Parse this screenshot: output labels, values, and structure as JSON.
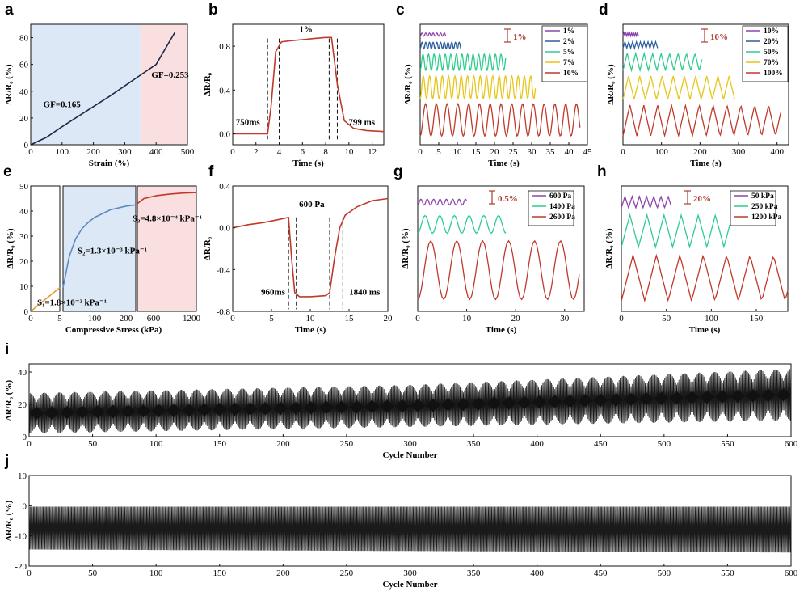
{
  "chart_data": [
    {
      "id": "a",
      "panel_label": "a",
      "type": "line",
      "xlabel": "Strain (%)",
      "ylabel": "ΔR/R₀ (%)",
      "xlim": [
        0,
        500
      ],
      "ylim": [
        0,
        90
      ],
      "xticks": [
        0,
        100,
        200,
        300,
        400,
        500
      ],
      "yticks": [
        0,
        20,
        40,
        60,
        80
      ],
      "regions": [
        {
          "from": 0,
          "to": 350,
          "color": "#dce8f6"
        },
        {
          "from": 350,
          "to": 500,
          "color": "#f9dfe0"
        }
      ],
      "series": [
        {
          "color": "#1e2a4a",
          "x": [
            0,
            50,
            100,
            150,
            200,
            250,
            300,
            350,
            400,
            430,
            460
          ],
          "y": [
            0,
            5.5,
            13.5,
            21,
            28.5,
            36,
            44,
            52,
            60,
            72,
            84
          ]
        }
      ],
      "annotations": [
        "GF=0.165",
        "GF=0.253"
      ]
    },
    {
      "id": "b",
      "panel_label": "b",
      "type": "line",
      "xlabel": "Time (s)",
      "ylabel": "ΔR/R₀",
      "xlim": [
        0,
        13
      ],
      "ylim": [
        -0.1,
        1.0
      ],
      "xticks": [
        0,
        2,
        4,
        6,
        8,
        10,
        12
      ],
      "yticks": [
        0.0,
        0.4,
        0.8
      ],
      "series": [
        {
          "color": "#c0392b",
          "x": [
            0,
            3.0,
            3.3,
            3.7,
            4.2,
            5,
            6,
            7,
            8,
            8.5,
            9.0,
            9.6,
            10.4,
            11.5,
            13
          ],
          "y": [
            0.0,
            0.0,
            0.25,
            0.75,
            0.84,
            0.85,
            0.86,
            0.87,
            0.88,
            0.88,
            0.45,
            0.12,
            0.05,
            0.03,
            0.02
          ]
        }
      ],
      "annotations": [
        "1%",
        "750ms",
        "799 ms"
      ]
    },
    {
      "id": "c",
      "panel_label": "c",
      "type": "line",
      "xlabel": "Time (s)",
      "ylabel": "ΔR/R₀ (%)",
      "xlim": [
        0,
        45
      ],
      "xticks": [
        0,
        5,
        10,
        15,
        20,
        25,
        30,
        35,
        40,
        45
      ],
      "scale_bar": "1%",
      "series": [
        {
          "name": "1%",
          "color": "#8e44ad",
          "amp": 0.1,
          "period": 1.0,
          "tmax": 7
        },
        {
          "name": "2%",
          "color": "#2d5d9f",
          "amp": 0.2,
          "period": 1.0,
          "tmax": 11
        },
        {
          "name": "5%",
          "color": "#2ecc8f",
          "amp": 0.5,
          "period": 1.5,
          "tmax": 23
        },
        {
          "name": "7%",
          "color": "#e6c619",
          "amp": 0.7,
          "period": 1.7,
          "tmax": 31
        },
        {
          "name": "10%",
          "color": "#c0392b",
          "amp": 1.0,
          "period": 2.9,
          "tmax": 43
        }
      ]
    },
    {
      "id": "d",
      "panel_label": "d",
      "type": "line",
      "xlabel": "Time (s)",
      "ylabel": "ΔR/R₀ (%)",
      "xlim": [
        0,
        430
      ],
      "xticks": [
        0,
        100,
        200,
        300,
        400
      ],
      "scale_bar": "10%",
      "series": [
        {
          "name": "10%",
          "color": "#8e44ad",
          "amp": 0.1,
          "period": 5,
          "tmax": 40
        },
        {
          "name": "20%",
          "color": "#2d5d9f",
          "amp": 0.2,
          "period": 10,
          "tmax": 90
        },
        {
          "name": "50%",
          "color": "#2ecc8f",
          "amp": 0.55,
          "period": 22,
          "tmax": 205
        },
        {
          "name": "70%",
          "color": "#e6c619",
          "amp": 0.75,
          "period": 29,
          "tmax": 290
        },
        {
          "name": "100%",
          "color": "#c0392b",
          "amp": 1.0,
          "period": 36,
          "tmax": 410
        }
      ]
    },
    {
      "id": "e",
      "panel_label": "e",
      "type": "line",
      "xlabel": "Compressive Stress (kPa)",
      "ylabel": "ΔR/R₀ (%)",
      "yticks": [
        0,
        10,
        20,
        30,
        40,
        50
      ],
      "ylim": [
        0,
        50
      ],
      "xtick_labels": [
        "0",
        "5",
        "0",
        "100",
        "200",
        "600",
        "1200"
      ],
      "regions": [
        {
          "color": "#ffffff",
          "label": "S₁=1.8×10⁻² kPa⁻¹"
        },
        {
          "color": "#dce8f6",
          "label": "S₂=1.3×10⁻³ kPa⁻¹"
        },
        {
          "color": "#f9dfe0",
          "label": "S₃=4.8×10⁻⁴ kPa⁻¹"
        }
      ],
      "series": [
        {
          "color": "#e59b38",
          "segment": 1,
          "x": [
            0,
            5
          ],
          "y": [
            0,
            9.5
          ]
        },
        {
          "color": "#5b8ac2",
          "segment": 2,
          "x": [
            0,
            20,
            40,
            60,
            80,
            100,
            150,
            200,
            230
          ],
          "y": [
            9.5,
            22,
            29,
            33,
            35.5,
            37.5,
            40.5,
            42,
            42.5
          ]
        },
        {
          "color": "#c0392b",
          "segment": 3,
          "x": [
            300,
            400,
            600,
            800,
            1000,
            1200
          ],
          "y": [
            43,
            45,
            46.2,
            46.8,
            47.2,
            47.4
          ]
        }
      ]
    },
    {
      "id": "f",
      "panel_label": "f",
      "type": "line",
      "xlabel": "Time (s)",
      "ylabel": "ΔR/R₀",
      "xlim": [
        0,
        20
      ],
      "ylim": [
        -0.8,
        0.4
      ],
      "xticks": [
        0,
        5,
        10,
        15,
        20
      ],
      "yticks": [
        -0.8,
        -0.4,
        0.0,
        0.4
      ],
      "series": [
        {
          "color": "#c0392b",
          "x": [
            0,
            2,
            4,
            6,
            7.2,
            7.6,
            8.0,
            8.6,
            10,
            12,
            12.5,
            13.1,
            13.8,
            14.5,
            16,
            18,
            20
          ],
          "y": [
            0.0,
            0.03,
            0.05,
            0.08,
            0.1,
            -0.3,
            -0.62,
            -0.66,
            -0.66,
            -0.65,
            -0.62,
            -0.3,
            0.0,
            0.12,
            0.2,
            0.26,
            0.28
          ]
        }
      ],
      "annotations": [
        "600 Pa",
        "960ms",
        "1840 ms"
      ]
    },
    {
      "id": "g",
      "panel_label": "g",
      "type": "line",
      "xlabel": "Time (s)",
      "ylabel": "ΔR/R₀ (%)",
      "xlim": [
        0,
        34
      ],
      "xticks": [
        0,
        10,
        20,
        30
      ],
      "scale_bar": "0.5%",
      "series": [
        {
          "name": "600 Pa",
          "color": "#8e44ad",
          "amp": 0.1,
          "period": 1.3,
          "tmax": 10
        },
        {
          "name": "1400 Pa",
          "color": "#2ecc8f",
          "amp": 0.3,
          "period": 3.0,
          "tmax": 18
        },
        {
          "name": "2600 Pa",
          "color": "#c0392b",
          "amp": 1.0,
          "period": 5.3,
          "tmax": 33
        }
      ]
    },
    {
      "id": "h",
      "panel_label": "h",
      "type": "line",
      "xlabel": "Time (s)",
      "ylabel": "ΔR/R₀ (%)",
      "xlim": [
        0,
        185
      ],
      "xticks": [
        0,
        50,
        100,
        150
      ],
      "scale_bar": "20%",
      "series": [
        {
          "name": "50 kPa",
          "color": "#8e44ad",
          "amp": 0.25,
          "period": 8,
          "tmax": 55
        },
        {
          "name": "250 kPa",
          "color": "#2ecc8f",
          "amp": 0.7,
          "period": 19,
          "tmax": 122
        },
        {
          "name": "1200 kPa",
          "color": "#c0392b",
          "amp": 1.0,
          "period": 26,
          "tmax": 185
        }
      ]
    },
    {
      "id": "i",
      "panel_label": "i",
      "type": "line",
      "xlabel": "Cycle Number",
      "ylabel": "ΔR/R₀ (%)",
      "xlim": [
        0,
        600
      ],
      "ylim": [
        0,
        45
      ],
      "xticks": [
        0,
        50,
        100,
        150,
        200,
        250,
        300,
        350,
        400,
        450,
        500,
        550,
        600
      ],
      "yticks": [
        0,
        20,
        40
      ],
      "envelope": {
        "x": [
          0,
          300,
          600
        ],
        "upper": [
          27,
          32,
          42
        ],
        "lower": [
          2,
          6,
          10
        ]
      }
    },
    {
      "id": "j",
      "panel_label": "j",
      "type": "line",
      "xlabel": "Cycle Number",
      "ylabel": "ΔR/R₀ (%)",
      "xlim": [
        0,
        600
      ],
      "ylim": [
        -20,
        10
      ],
      "xticks": [
        0,
        50,
        100,
        150,
        200,
        250,
        300,
        350,
        400,
        450,
        500,
        550,
        600
      ],
      "yticks": [
        -20,
        -10,
        0,
        10
      ],
      "envelope": {
        "x": [
          0,
          600
        ],
        "upper": [
          -0.3,
          -0.3
        ],
        "lower": [
          -14.5,
          -15.5
        ]
      }
    }
  ]
}
